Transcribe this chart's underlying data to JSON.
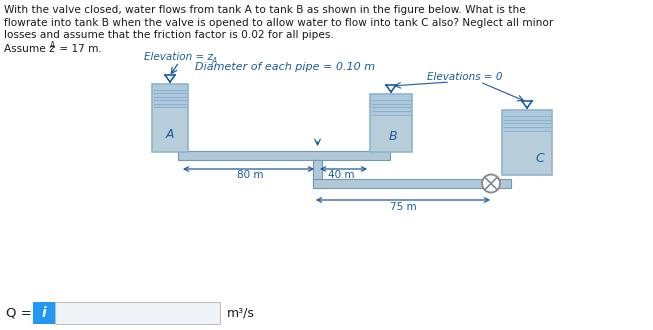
{
  "text_line1": "With the valve closed, water flows from tank A to tank B as shown in the figure below. What is the",
  "text_line2": "flowrate into tank B when the valve is opened to allow water to flow into tank C also? Neglect all minor",
  "text_line3": "losses and assume that the friction factor is 0.02 for all pipes.",
  "assume_line": "Assume z",
  "assume_sub": "A",
  "assume_rest": " = 17 m.",
  "elevation_label": "Elevation = z",
  "elevation_sub": "A",
  "diameter_label": "Diameter of each pipe = 0.10 m",
  "elevations_label": "Elevations = 0",
  "dim_80": "80 m",
  "dim_40": "40 m",
  "dim_75": "75 m",
  "tank_A_label": "A",
  "tank_B_label": "B",
  "tank_C_label": "C",
  "q_label": "Q =",
  "q_unit": "m³/s",
  "input_i_text": "i",
  "blue_color": "#1e8bc3",
  "tank_fill_color": "#aec9dd",
  "tank_wall_color": "#8fb4cc",
  "tank_body_color": "#b8ceda",
  "pipe_fill_color": "#b0c8d8",
  "pipe_border_color": "#7099b0",
  "hatch_color": "#8ab0c8",
  "input_blue": "#2196F3",
  "input_box_border": "#c0c0c0",
  "input_box_fill": "#f0f4f8",
  "text_color": "#1a1a1a",
  "annot_color": "#1a5ca0",
  "background": "#ffffff",
  "valve_color": "#888888"
}
